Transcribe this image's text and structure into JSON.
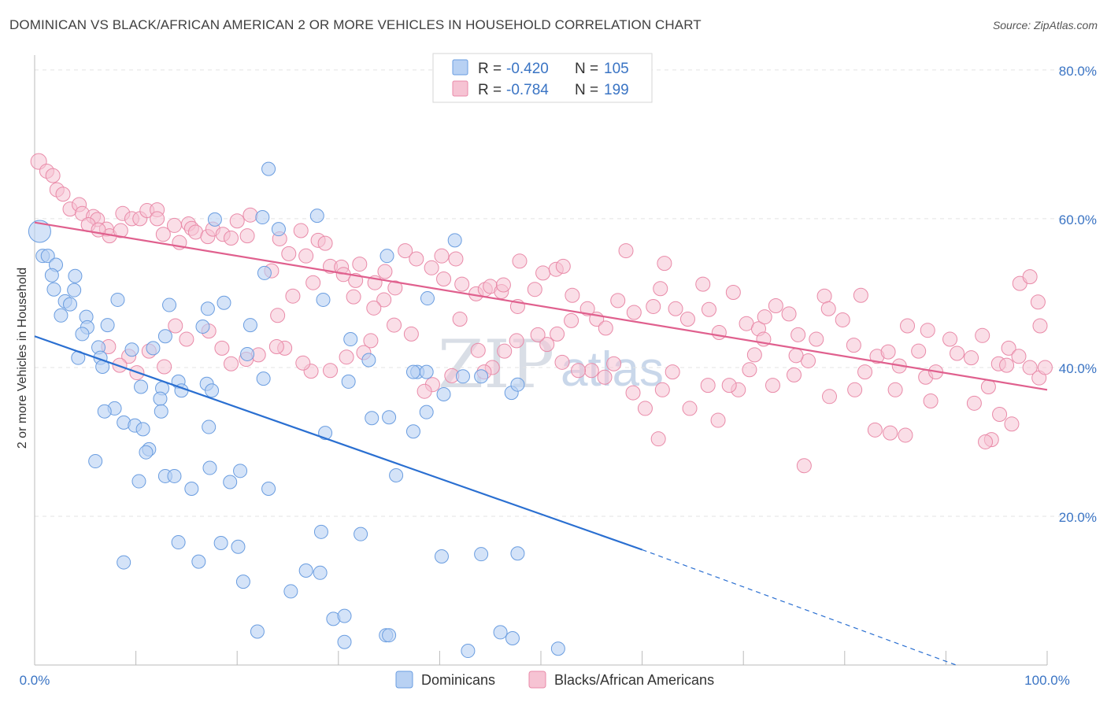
{
  "title": "DOMINICAN VS BLACK/AFRICAN AMERICAN 2 OR MORE VEHICLES IN HOUSEHOLD CORRELATION CHART",
  "source": "Source: ZipAtlas.com",
  "colors": {
    "dominican": "#6a9de0",
    "dominican_fill": "#b8d1f3",
    "black": "#e98aa8",
    "black_fill": "#f6c3d3",
    "dominican_line": "#2a6fd1",
    "black_line": "#e0608e",
    "tick_label": "#3a74c4"
  },
  "legend": {
    "rows": [
      {
        "r_label": "R = ",
        "r_value": "-0.420",
        "n_label": "N = ",
        "n_value": "105",
        "series": "Dominicans"
      },
      {
        "r_label": "R = ",
        "r_value": "-0.784",
        "n_label": "N = ",
        "n_value": "199",
        "series": "Blacks/African Americans"
      }
    ]
  },
  "bottom_legend": [
    "Dominicans",
    "Blacks/African Americans"
  ],
  "watermark": {
    "part1": "ZIP",
    "part2": "atlas"
  },
  "chart_data": {
    "type": "scatter",
    "xlabel": "",
    "ylabel": "2 or more Vehicles in Household",
    "xlim": [
      0,
      100
    ],
    "ylim": [
      0,
      82
    ],
    "x_tick_labels": [
      "0.0%",
      "100.0%"
    ],
    "y_ticks": [
      20,
      40,
      60,
      80
    ],
    "y_tick_labels": [
      "20.0%",
      "40.0%",
      "60.0%",
      "80.0%"
    ],
    "grid": "horizontal dashed",
    "legend_position": "top-center",
    "series": [
      {
        "name": "Dominicans",
        "trend": {
          "x0": 0,
          "y0": 44.2,
          "x1": 60,
          "y1": 15.5,
          "dashed_to_x": 91,
          "dashed_to_y": 0
        },
        "points": [
          [
            0.5,
            58.3
          ],
          [
            0.8,
            55.0
          ],
          [
            1.3,
            55.0
          ],
          [
            2.1,
            53.8
          ],
          [
            1.7,
            52.4
          ],
          [
            4.0,
            52.3
          ],
          [
            1.9,
            50.5
          ],
          [
            3.0,
            48.9
          ],
          [
            3.9,
            50.4
          ],
          [
            3.5,
            48.5
          ],
          [
            2.6,
            47.0
          ],
          [
            5.1,
            46.8
          ],
          [
            5.2,
            45.4
          ],
          [
            7.2,
            45.7
          ],
          [
            4.7,
            44.5
          ],
          [
            6.3,
            42.7
          ],
          [
            4.3,
            41.3
          ],
          [
            6.5,
            41.3
          ],
          [
            6.7,
            40.1
          ],
          [
            9.6,
            42.4
          ],
          [
            11.7,
            42.6
          ],
          [
            12.9,
            44.2
          ],
          [
            8.2,
            49.1
          ],
          [
            13.3,
            48.4
          ],
          [
            16.6,
            45.5
          ],
          [
            17.1,
            47.9
          ],
          [
            21.3,
            45.7
          ],
          [
            21.0,
            41.8
          ],
          [
            22.7,
            52.7
          ],
          [
            14.2,
            38.1
          ],
          [
            14.5,
            36.9
          ],
          [
            10.5,
            37.4
          ],
          [
            12.6,
            37.2
          ],
          [
            12.4,
            35.8
          ],
          [
            7.9,
            34.5
          ],
          [
            6.9,
            34.1
          ],
          [
            12.5,
            34.1
          ],
          [
            8.8,
            32.6
          ],
          [
            9.9,
            32.2
          ],
          [
            10.7,
            31.7
          ],
          [
            17.0,
            37.8
          ],
          [
            17.5,
            36.9
          ],
          [
            18.7,
            48.7
          ],
          [
            11.3,
            29.0
          ],
          [
            11.0,
            28.6
          ],
          [
            17.2,
            32.0
          ],
          [
            6.0,
            27.4
          ],
          [
            10.3,
            24.7
          ],
          [
            12.9,
            25.4
          ],
          [
            13.8,
            25.4
          ],
          [
            15.5,
            23.7
          ],
          [
            17.3,
            26.5
          ],
          [
            19.3,
            24.6
          ],
          [
            20.3,
            26.1
          ],
          [
            23.1,
            23.7
          ],
          [
            22.5,
            60.2
          ],
          [
            23.1,
            66.7
          ],
          [
            24.1,
            58.6
          ],
          [
            27.9,
            60.4
          ],
          [
            17.8,
            59.9
          ],
          [
            22.6,
            38.5
          ],
          [
            28.5,
            49.1
          ],
          [
            28.7,
            31.2
          ],
          [
            31.2,
            43.8
          ],
          [
            33.0,
            41.0
          ],
          [
            31.0,
            38.1
          ],
          [
            33.3,
            33.2
          ],
          [
            34.8,
            55.0
          ],
          [
            37.8,
            39.4
          ],
          [
            38.8,
            49.3
          ],
          [
            38.7,
            34.0
          ],
          [
            37.4,
            31.4
          ],
          [
            41.5,
            57.1
          ],
          [
            42.3,
            38.8
          ],
          [
            44.1,
            38.8
          ],
          [
            47.1,
            36.6
          ],
          [
            47.7,
            37.7
          ],
          [
            38.7,
            39.4
          ],
          [
            35.0,
            33.3
          ],
          [
            35.7,
            25.5
          ],
          [
            14.2,
            16.5
          ],
          [
            16.2,
            13.9
          ],
          [
            18.4,
            16.4
          ],
          [
            20.1,
            15.9
          ],
          [
            20.6,
            11.2
          ],
          [
            8.8,
            13.8
          ],
          [
            25.3,
            9.9
          ],
          [
            26.8,
            12.7
          ],
          [
            28.2,
            12.4
          ],
          [
            28.3,
            17.9
          ],
          [
            32.2,
            17.6
          ],
          [
            22.0,
            4.5
          ],
          [
            29.5,
            6.2
          ],
          [
            30.6,
            6.6
          ],
          [
            30.6,
            3.1
          ],
          [
            34.7,
            4.0
          ],
          [
            35.0,
            4.0
          ],
          [
            40.2,
            14.6
          ],
          [
            42.8,
            1.9
          ],
          [
            44.1,
            14.9
          ],
          [
            47.7,
            15.0
          ],
          [
            46.0,
            4.4
          ],
          [
            47.2,
            3.6
          ],
          [
            51.7,
            2.2
          ],
          [
            40.4,
            36.4
          ],
          [
            37.4,
            39.4
          ]
        ]
      },
      {
        "name": "Blacks/African Americans",
        "trend": {
          "x0": 0,
          "y0": 59.5,
          "x1": 100,
          "y1": 37.0
        },
        "points": [
          [
            0.4,
            67.7
          ],
          [
            1.2,
            66.4
          ],
          [
            1.8,
            65.8
          ],
          [
            2.2,
            63.9
          ],
          [
            2.8,
            63.3
          ],
          [
            3.5,
            61.3
          ],
          [
            4.4,
            61.9
          ],
          [
            4.7,
            60.7
          ],
          [
            5.8,
            60.3
          ],
          [
            6.2,
            59.9
          ],
          [
            5.3,
            59.2
          ],
          [
            7.1,
            58.6
          ],
          [
            7.4,
            57.7
          ],
          [
            6.3,
            58.5
          ],
          [
            8.5,
            58.4
          ],
          [
            8.7,
            60.7
          ],
          [
            9.6,
            60.0
          ],
          [
            10.4,
            60.0
          ],
          [
            11.1,
            61.1
          ],
          [
            12.1,
            61.2
          ],
          [
            12.1,
            60.0
          ],
          [
            12.7,
            57.9
          ],
          [
            13.8,
            59.1
          ],
          [
            14.3,
            56.8
          ],
          [
            15.2,
            59.3
          ],
          [
            15.5,
            58.7
          ],
          [
            15.9,
            58.2
          ],
          [
            17.1,
            57.6
          ],
          [
            17.6,
            58.6
          ],
          [
            18.6,
            57.9
          ],
          [
            19.4,
            57.4
          ],
          [
            20.0,
            59.7
          ],
          [
            21.3,
            60.5
          ],
          [
            21.0,
            57.7
          ],
          [
            24.2,
            57.3
          ],
          [
            23.4,
            53.0
          ],
          [
            25.1,
            55.3
          ],
          [
            26.3,
            58.4
          ],
          [
            26.8,
            55.0
          ],
          [
            28.0,
            57.1
          ],
          [
            28.7,
            56.7
          ],
          [
            29.2,
            53.6
          ],
          [
            30.3,
            53.5
          ],
          [
            30.5,
            52.5
          ],
          [
            31.7,
            51.7
          ],
          [
            32.1,
            53.9
          ],
          [
            33.6,
            51.4
          ],
          [
            34.6,
            52.9
          ],
          [
            34.5,
            49.1
          ],
          [
            35.6,
            50.7
          ],
          [
            36.6,
            55.7
          ],
          [
            37.7,
            54.6
          ],
          [
            39.2,
            53.4
          ],
          [
            40.2,
            55.0
          ],
          [
            40.4,
            51.9
          ],
          [
            41.6,
            54.6
          ],
          [
            42.2,
            51.2
          ],
          [
            43.6,
            49.9
          ],
          [
            44.5,
            50.5
          ],
          [
            45.0,
            50.9
          ],
          [
            46.1,
            50.2
          ],
          [
            46.3,
            51.1
          ],
          [
            47.7,
            48.2
          ],
          [
            47.9,
            54.3
          ],
          [
            49.4,
            50.5
          ],
          [
            50.2,
            52.7
          ],
          [
            51.5,
            53.2
          ],
          [
            52.2,
            53.6
          ],
          [
            53.1,
            49.7
          ],
          [
            53.0,
            46.3
          ],
          [
            54.6,
            47.9
          ],
          [
            55.5,
            46.5
          ],
          [
            56.4,
            45.3
          ],
          [
            57.6,
            49.0
          ],
          [
            58.4,
            55.7
          ],
          [
            59.2,
            47.4
          ],
          [
            61.1,
            48.2
          ],
          [
            61.8,
            50.6
          ],
          [
            62.2,
            54.0
          ],
          [
            63.3,
            47.9
          ],
          [
            64.5,
            46.5
          ],
          [
            66.0,
            51.2
          ],
          [
            66.6,
            47.8
          ],
          [
            67.6,
            44.7
          ],
          [
            69.0,
            50.1
          ],
          [
            70.3,
            45.9
          ],
          [
            71.5,
            45.2
          ],
          [
            72.1,
            46.8
          ],
          [
            73.2,
            48.3
          ],
          [
            74.5,
            47.2
          ],
          [
            75.4,
            44.4
          ],
          [
            76.4,
            40.9
          ],
          [
            77.2,
            43.8
          ],
          [
            78.0,
            49.6
          ],
          [
            78.4,
            47.9
          ],
          [
            79.8,
            46.4
          ],
          [
            80.9,
            43.0
          ],
          [
            81.6,
            49.7
          ],
          [
            82.0,
            39.4
          ],
          [
            83.2,
            41.5
          ],
          [
            84.3,
            42.1
          ],
          [
            85.0,
            37.0
          ],
          [
            85.4,
            40.2
          ],
          [
            86.2,
            45.6
          ],
          [
            87.3,
            42.2
          ],
          [
            88.0,
            38.7
          ],
          [
            89.0,
            39.4
          ],
          [
            90.4,
            43.8
          ],
          [
            91.1,
            41.9
          ],
          [
            92.5,
            41.3
          ],
          [
            93.6,
            44.3
          ],
          [
            94.2,
            37.4
          ],
          [
            95.2,
            40.5
          ],
          [
            96.2,
            42.6
          ],
          [
            97.2,
            41.5
          ],
          [
            98.3,
            40.0
          ],
          [
            99.2,
            38.6
          ],
          [
            97.3,
            51.3
          ],
          [
            99.1,
            48.8
          ],
          [
            99.3,
            45.6
          ],
          [
            99.8,
            40.0
          ],
          [
            98.3,
            52.2
          ],
          [
            96.0,
            40.3
          ],
          [
            96.5,
            32.4
          ],
          [
            95.3,
            33.7
          ],
          [
            94.5,
            30.3
          ],
          [
            93.9,
            30.0
          ],
          [
            92.8,
            35.2
          ],
          [
            88.5,
            35.5
          ],
          [
            88.2,
            45.0
          ],
          [
            86.0,
            30.9
          ],
          [
            84.5,
            31.2
          ],
          [
            83.0,
            31.6
          ],
          [
            81.0,
            37.0
          ],
          [
            78.5,
            36.1
          ],
          [
            75.2,
            41.6
          ],
          [
            75.0,
            39.0
          ],
          [
            72.9,
            37.6
          ],
          [
            72.0,
            43.8
          ],
          [
            71.1,
            41.7
          ],
          [
            70.6,
            39.7
          ],
          [
            69.5,
            37.0
          ],
          [
            68.6,
            37.6
          ],
          [
            67.5,
            32.9
          ],
          [
            66.5,
            37.6
          ],
          [
            64.7,
            34.5
          ],
          [
            63.0,
            39.4
          ],
          [
            62.0,
            37.0
          ],
          [
            61.6,
            30.4
          ],
          [
            60.3,
            34.5
          ],
          [
            59.1,
            36.6
          ],
          [
            57.2,
            40.5
          ],
          [
            56.3,
            38.7
          ],
          [
            55.0,
            39.6
          ],
          [
            53.7,
            39.6
          ],
          [
            52.1,
            40.7
          ],
          [
            51.6,
            44.5
          ],
          [
            50.6,
            43.1
          ],
          [
            49.7,
            44.4
          ],
          [
            47.6,
            43.6
          ],
          [
            46.4,
            42.2
          ],
          [
            45.2,
            40.0
          ],
          [
            44.4,
            39.4
          ],
          [
            43.8,
            42.3
          ],
          [
            42.0,
            46.5
          ],
          [
            41.2,
            38.9
          ],
          [
            39.3,
            37.7
          ],
          [
            38.5,
            36.8
          ],
          [
            37.2,
            44.5
          ],
          [
            35.5,
            45.7
          ],
          [
            33.2,
            43.6
          ],
          [
            32.5,
            42.0
          ],
          [
            30.8,
            41.4
          ],
          [
            29.2,
            39.6
          ],
          [
            27.3,
            39.5
          ],
          [
            26.5,
            40.6
          ],
          [
            24.7,
            42.6
          ],
          [
            23.9,
            42.8
          ],
          [
            22.1,
            41.7
          ],
          [
            20.9,
            41.1
          ],
          [
            19.4,
            40.5
          ],
          [
            18.5,
            42.6
          ],
          [
            17.2,
            44.9
          ],
          [
            15.0,
            43.8
          ],
          [
            13.9,
            45.6
          ],
          [
            12.8,
            40.1
          ],
          [
            11.3,
            42.2
          ],
          [
            10.1,
            39.3
          ],
          [
            9.3,
            41.5
          ],
          [
            8.4,
            40.3
          ],
          [
            7.3,
            42.8
          ],
          [
            24.0,
            47.0
          ],
          [
            25.5,
            49.6
          ],
          [
            27.5,
            51.4
          ],
          [
            31.5,
            49.5
          ],
          [
            33.5,
            48.0
          ],
          [
            76.0,
            26.8
          ]
        ]
      }
    ]
  }
}
